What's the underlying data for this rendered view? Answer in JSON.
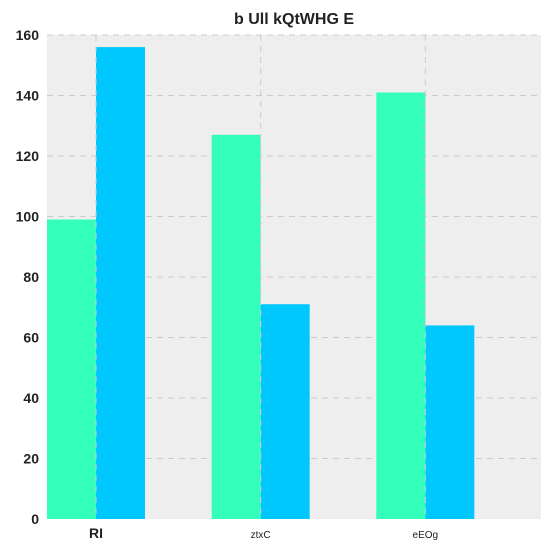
{
  "chart_data": {
    "type": "bar",
    "title": "b Ull kQtWHG E",
    "xlabel": "",
    "ylabel": "",
    "categories": [
      "RI",
      "ztxC",
      "eEOg"
    ],
    "series": [
      {
        "values": [
          99,
          127,
          141
        ],
        "color": "#33ffbb"
      },
      {
        "values": [
          156,
          71,
          64
        ],
        "color": "#00c8ff"
      }
    ],
    "ylim": [
      0,
      160
    ],
    "yticks": [
      0,
      20,
      40,
      60,
      80,
      100,
      120,
      140,
      160
    ],
    "grid": true,
    "legend": "none",
    "colors": {
      "background": "#eeeeee",
      "grid": "#cccccc"
    }
  }
}
